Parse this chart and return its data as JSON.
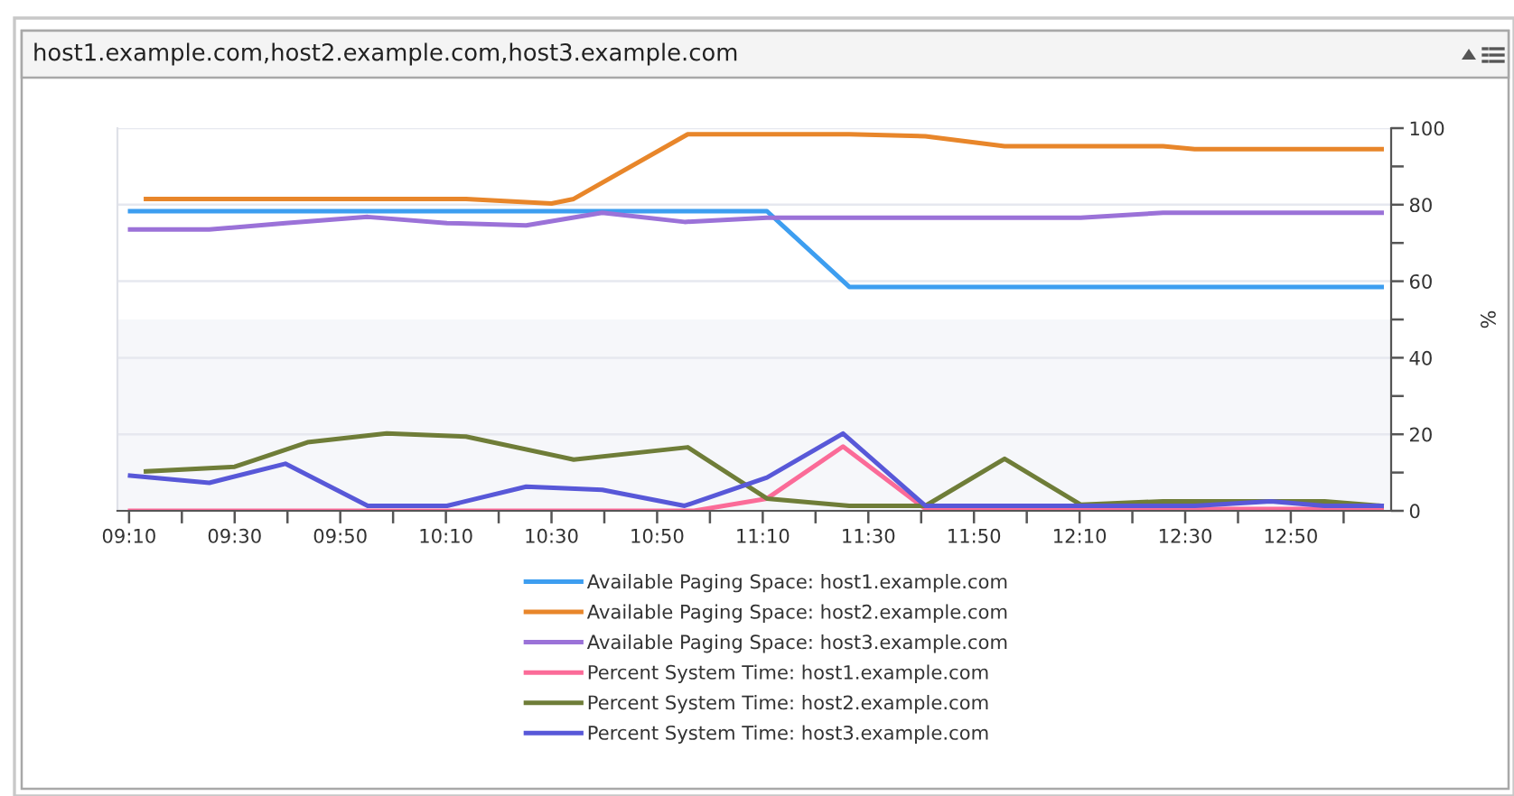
{
  "chart_data": {
    "type": "line",
    "title": "host1.example.com,host2.example.com,host3.example.com",
    "ylabel": "%",
    "xlim": [
      9.13,
      13.15
    ],
    "xticks": [
      {
        "value": 9.1667,
        "label": "09:10"
      },
      {
        "value": 9.3333,
        "label": null
      },
      {
        "value": 9.5,
        "label": "09:30"
      },
      {
        "value": 9.6667,
        "label": null
      },
      {
        "value": 9.8333,
        "label": "09:50"
      },
      {
        "value": 10,
        "label": null
      },
      {
        "value": 10.1667,
        "label": "10:10"
      },
      {
        "value": 10.3333,
        "label": null
      },
      {
        "value": 10.5,
        "label": "10:30"
      },
      {
        "value": 10.6667,
        "label": null
      },
      {
        "value": 10.8333,
        "label": "10:50"
      },
      {
        "value": 11,
        "label": null
      },
      {
        "value": 11.1667,
        "label": "11:10"
      },
      {
        "value": 11.3333,
        "label": null
      },
      {
        "value": 11.5,
        "label": "11:30"
      },
      {
        "value": 11.6667,
        "label": null
      },
      {
        "value": 11.8333,
        "label": "11:50"
      },
      {
        "value": 12,
        "label": null
      },
      {
        "value": 12.1667,
        "label": "12:10"
      },
      {
        "value": 12.3333,
        "label": null
      },
      {
        "value": 12.5,
        "label": "12:30"
      },
      {
        "value": 12.6667,
        "label": null
      },
      {
        "value": 12.8333,
        "label": "12:50"
      },
      {
        "value": 13,
        "label": null
      }
    ],
    "ylim": [
      0,
      100
    ],
    "yticks": [
      0,
      {
        "value": 10,
        "label": null
      },
      20,
      {
        "value": 30,
        "label": null
      },
      40,
      {
        "value": 50,
        "label": null
      },
      60,
      {
        "value": 70,
        "label": null
      },
      80,
      {
        "value": 90,
        "label": null
      },
      100
    ],
    "grid": "y",
    "legend": "bottom",
    "line_style": "solid",
    "bands": [
      {
        "axis": "y",
        "from": 0,
        "to": 50,
        "color": "#f6f7fa"
      }
    ],
    "series": [
      {
        "name": "Available Paging Space: host1.example.com",
        "color": "#3d9ef0",
        "x": [
          9.17,
          11.18,
          11.44,
          13.12
        ],
        "values": [
          78.3,
          78.3,
          58.5,
          58.5
        ]
      },
      {
        "name": "Available Paging Space: host2.example.com",
        "color": "#e8862a",
        "x": [
          9.22,
          10.23,
          10.5,
          10.57,
          10.93,
          11.44,
          11.68,
          11.93,
          12.43,
          12.53,
          13.12
        ],
        "values": [
          81.5,
          81.5,
          80.3,
          81.5,
          98.4,
          98.4,
          97.9,
          95.3,
          95.3,
          94.5,
          94.5
        ]
      },
      {
        "name": "Available Paging Space: host3.example.com",
        "color": "#9b72d8",
        "x": [
          9.17,
          9.42,
          9.66,
          9.92,
          10.17,
          10.42,
          10.66,
          10.92,
          11.18,
          12.17,
          12.43,
          13.12
        ],
        "values": [
          73.5,
          73.5,
          75.2,
          76.8,
          75.2,
          74.6,
          77.9,
          75.5,
          76.6,
          76.6,
          77.9,
          77.9
        ]
      },
      {
        "name": "Percent System Time: host1.example.com",
        "color": "#fb6b98",
        "x": [
          9.17,
          10.95,
          11.18,
          11.42,
          11.68,
          13.12
        ],
        "values": [
          0,
          0,
          3.2,
          16.8,
          0.5,
          0.5
        ]
      },
      {
        "name": "Percent System Time: host2.example.com",
        "color": "#6f7d38",
        "x": [
          9.22,
          9.5,
          9.73,
          9.98,
          10.23,
          10.57,
          10.93,
          11.18,
          11.44,
          11.68,
          11.93,
          12.17,
          12.43,
          12.94,
          13.12
        ],
        "values": [
          10.3,
          11.5,
          17.9,
          20.2,
          19.4,
          13.4,
          16.6,
          3.2,
          1.3,
          1.3,
          13.6,
          1.6,
          2.5,
          2.5,
          1.3
        ]
      },
      {
        "name": "Percent System Time: host3.example.com",
        "color": "#5858d8",
        "x": [
          9.17,
          9.42,
          9.66,
          9.92,
          10.17,
          10.42,
          10.66,
          10.92,
          11.18,
          11.42,
          11.68,
          12.53,
          12.77,
          12.94,
          13.12
        ],
        "values": [
          9.2,
          7.3,
          12.3,
          1.3,
          1.3,
          6.3,
          5.5,
          1.3,
          8.7,
          20.2,
          1.3,
          1.3,
          2.5,
          1.3,
          1.3
        ]
      }
    ]
  }
}
